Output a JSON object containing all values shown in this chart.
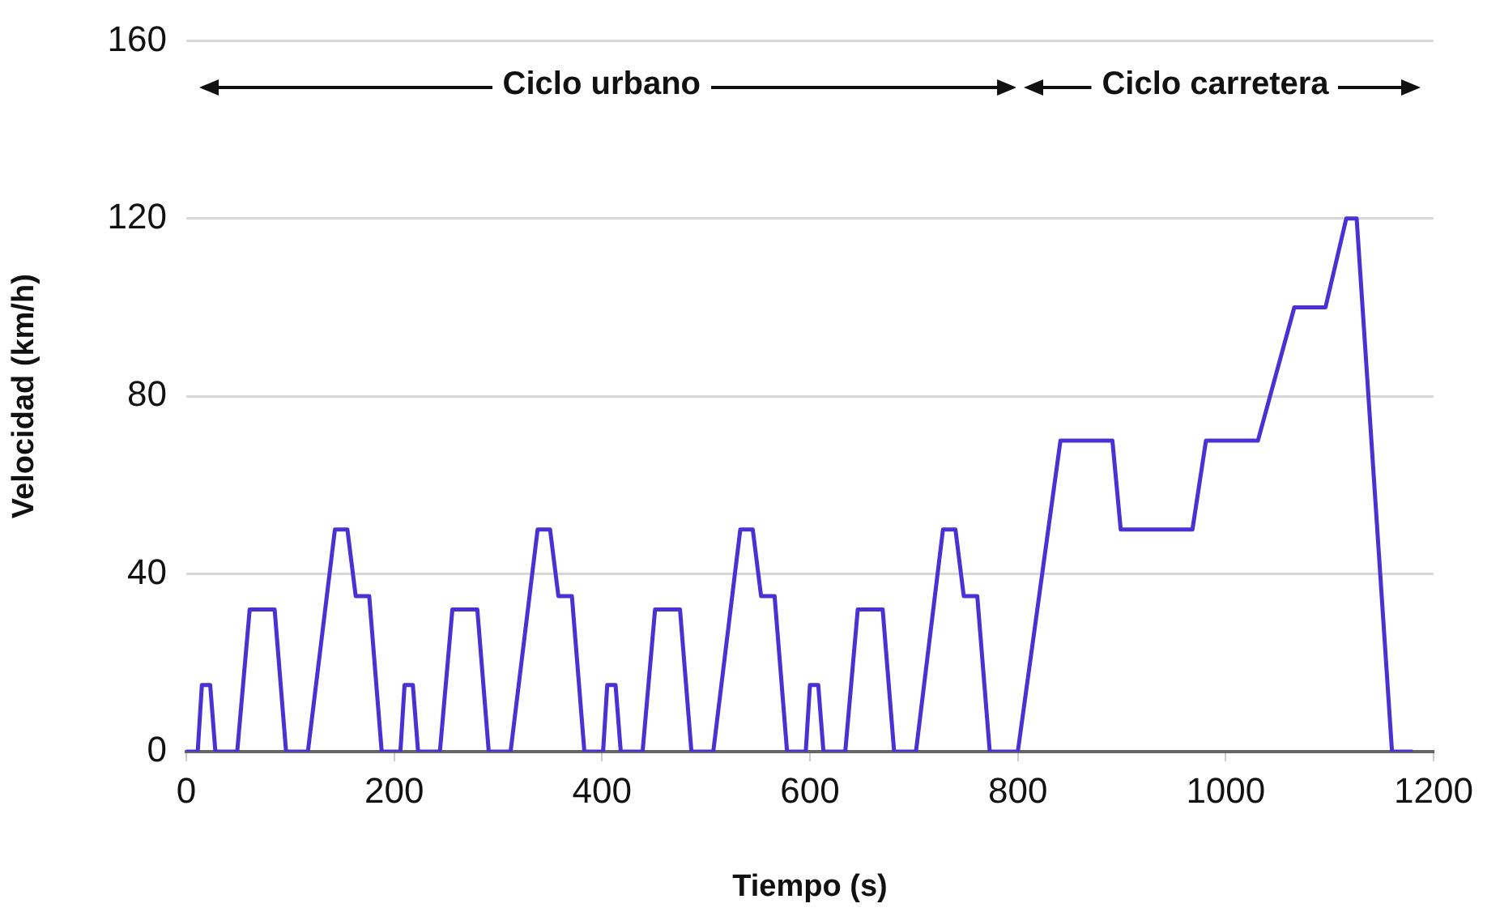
{
  "chart_data": {
    "type": "line",
    "xlabel": "Tiempo (s)",
    "ylabel": "Velocidad (km/h)",
    "xlim": [
      0,
      1200
    ],
    "xticks": [
      0,
      200,
      400,
      600,
      800,
      1000,
      1200
    ],
    "ylim": [
      0,
      160
    ],
    "yticks": [
      0,
      40,
      80,
      120,
      160
    ],
    "grid": "y",
    "legend": false,
    "marker": "none",
    "line_style": "solid",
    "annotations": [
      "Ciclo urbano",
      "Ciclo carretera"
    ],
    "series": [
      {
        "color": "#4b30d4",
        "x": [
          0,
          11,
          15,
          23,
          28,
          49,
          61,
          85,
          96,
          117,
          143,
          155,
          163,
          176,
          188,
          195,
          206,
          210,
          218,
          223,
          244,
          256,
          280,
          291,
          312,
          338,
          350,
          358,
          371,
          383,
          390,
          401,
          405,
          413,
          418,
          439,
          451,
          475,
          486,
          507,
          533,
          545,
          553,
          566,
          578,
          585,
          596,
          600,
          608,
          613,
          634,
          646,
          670,
          681,
          702,
          728,
          740,
          748,
          761,
          773,
          780,
          800,
          841,
          891,
          899,
          968,
          981,
          1031,
          1066,
          1096,
          1116,
          1126,
          1160,
          1180
        ],
        "values": [
          0,
          0,
          15,
          15,
          0,
          0,
          32,
          32,
          0,
          0,
          50,
          50,
          35,
          35,
          0,
          0,
          0,
          15,
          15,
          0,
          0,
          32,
          32,
          0,
          0,
          50,
          50,
          35,
          35,
          0,
          0,
          0,
          15,
          15,
          0,
          0,
          32,
          32,
          0,
          0,
          50,
          50,
          35,
          35,
          0,
          0,
          0,
          15,
          15,
          0,
          0,
          32,
          32,
          0,
          0,
          50,
          50,
          35,
          35,
          0,
          0,
          0,
          70,
          70,
          50,
          50,
          70,
          70,
          100,
          100,
          120,
          120,
          0,
          0
        ]
      }
    ]
  }
}
